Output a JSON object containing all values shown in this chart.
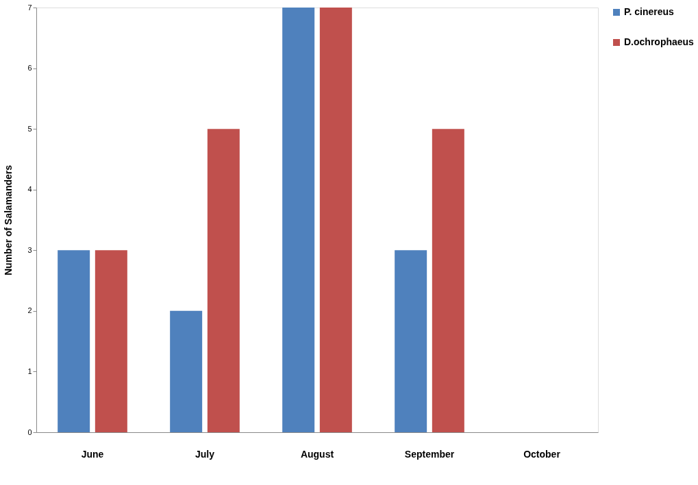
{
  "chart_data": {
    "type": "bar",
    "ylabel": "Number of Salamanders",
    "categories": [
      "June",
      "July",
      "August",
      "September",
      "October"
    ],
    "series": [
      {
        "name": "P. cinereus",
        "color": "#4f81bd",
        "values": [
          3,
          2,
          7,
          3,
          0
        ]
      },
      {
        "name": "D.ochrophaeus",
        "color": "#c0504d",
        "values": [
          3,
          5,
          7,
          5,
          0
        ]
      }
    ],
    "ylim": [
      0,
      7
    ],
    "yticks": [
      0,
      1,
      2,
      3,
      4,
      5,
      6,
      7
    ],
    "grid": false,
    "legend": "right"
  }
}
